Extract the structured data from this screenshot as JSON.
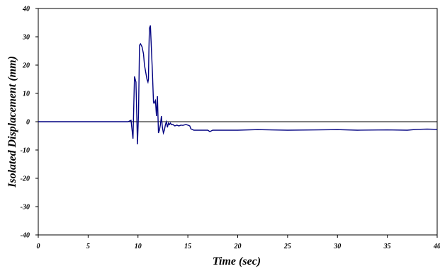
{
  "chart_data": {
    "type": "line",
    "title": "",
    "xlabel": "Time (sec)",
    "ylabel": "Isolated Displacement (mm)",
    "xlim": [
      0,
      40
    ],
    "ylim": [
      -40,
      40
    ],
    "x_ticks": [
      0,
      5,
      10,
      15,
      20,
      25,
      30,
      35,
      40
    ],
    "y_ticks": [
      40,
      30,
      20,
      10,
      0,
      -10,
      -20,
      -30,
      -40
    ],
    "grid": false,
    "zero_line": true,
    "legend": "none",
    "line_color": "#000080",
    "series": [
      {
        "x": [
          0,
          1,
          2,
          3,
          4,
          5,
          6,
          7,
          8,
          9,
          9.3,
          9.5,
          9.65,
          9.8,
          9.95,
          10.05,
          10.15,
          10.25,
          10.4,
          10.55,
          10.65,
          10.8,
          10.9,
          11.0,
          11.05,
          11.1,
          11.15,
          11.25,
          11.35,
          11.45,
          11.55,
          11.6,
          11.75,
          11.85,
          11.95,
          12.05,
          12.15,
          12.25,
          12.35,
          12.45,
          12.55,
          12.65,
          12.75,
          12.85,
          12.95,
          13.05,
          13.15,
          13.25,
          13.35,
          13.5,
          13.7,
          13.9,
          14.1,
          14.3,
          14.5,
          14.8,
          15.0,
          15.2,
          15.3,
          15.6,
          16.0,
          16.5,
          17.0,
          17.2,
          17.5,
          18,
          19,
          20,
          22,
          25,
          28,
          30,
          32,
          35,
          37,
          38,
          39,
          40
        ],
        "y": [
          0,
          0,
          0,
          0,
          0,
          0,
          0,
          0,
          0,
          0,
          0.5,
          -6,
          16,
          14,
          -8,
          3,
          27,
          27.5,
          26.5,
          24,
          20,
          17,
          15,
          14,
          15,
          26,
          33,
          34,
          25,
          17,
          7,
          6.5,
          7.5,
          2,
          9,
          -4,
          -3,
          -1,
          2,
          -2,
          -4,
          -3,
          -1,
          0,
          -2,
          -0.5,
          -1,
          -0.5,
          -1,
          -1,
          -1.5,
          -1.2,
          -1.5,
          -1.2,
          -1.3,
          -1,
          -1.2,
          -1.5,
          -2.5,
          -3,
          -3,
          -3,
          -3,
          -3.5,
          -3,
          -3,
          -3,
          -3,
          -2.8,
          -3,
          -2.9,
          -2.8,
          -3,
          -2.9,
          -3,
          -2.7,
          -2.6,
          -2.7
        ]
      }
    ]
  }
}
